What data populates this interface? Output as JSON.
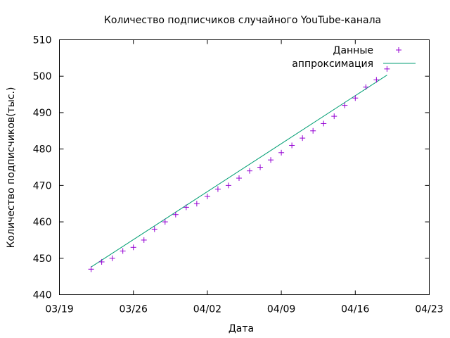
{
  "chart_data": {
    "type": "scatter",
    "title": "Количество подписчиков случайного YouTube-канала",
    "xlabel": "Дата",
    "ylabel": "Количество подписчиков(тыс.)",
    "xlim": [
      "2021-03-19",
      "2021-04-23"
    ],
    "ylim": [
      440,
      510
    ],
    "x_ticks": [
      {
        "date": "2021-03-19",
        "label": "03/19"
      },
      {
        "date": "2021-03-26",
        "label": "03/26"
      },
      {
        "date": "2021-04-02",
        "label": "04/02"
      },
      {
        "date": "2021-04-09",
        "label": "04/09"
      },
      {
        "date": "2021-04-16",
        "label": "04/16"
      },
      {
        "date": "2021-04-23",
        "label": "04/23"
      }
    ],
    "y_ticks": [
      440,
      450,
      460,
      470,
      480,
      490,
      500,
      510
    ],
    "grid": false,
    "legend_position": "top-right",
    "series": [
      {
        "name": "Данные",
        "kind": "points",
        "marker": "plus",
        "color": "#9400d3",
        "points": [
          {
            "x": "2021-03-22",
            "y": 447
          },
          {
            "x": "2021-03-23",
            "y": 449
          },
          {
            "x": "2021-03-24",
            "y": 450
          },
          {
            "x": "2021-03-25",
            "y": 452
          },
          {
            "x": "2021-03-26",
            "y": 453
          },
          {
            "x": "2021-03-27",
            "y": 455
          },
          {
            "x": "2021-03-28",
            "y": 458
          },
          {
            "x": "2021-03-29",
            "y": 460
          },
          {
            "x": "2021-03-30",
            "y": 462
          },
          {
            "x": "2021-03-31",
            "y": 464
          },
          {
            "x": "2021-04-01",
            "y": 465
          },
          {
            "x": "2021-04-02",
            "y": 467
          },
          {
            "x": "2021-04-03",
            "y": 469
          },
          {
            "x": "2021-04-04",
            "y": 470
          },
          {
            "x": "2021-04-05",
            "y": 472
          },
          {
            "x": "2021-04-06",
            "y": 474
          },
          {
            "x": "2021-04-07",
            "y": 475
          },
          {
            "x": "2021-04-08",
            "y": 477
          },
          {
            "x": "2021-04-09",
            "y": 479
          },
          {
            "x": "2021-04-10",
            "y": 481
          },
          {
            "x": "2021-04-11",
            "y": 483
          },
          {
            "x": "2021-04-12",
            "y": 485
          },
          {
            "x": "2021-04-13",
            "y": 487
          },
          {
            "x": "2021-04-14",
            "y": 489
          },
          {
            "x": "2021-04-15",
            "y": 492
          },
          {
            "x": "2021-04-16",
            "y": 494
          },
          {
            "x": "2021-04-17",
            "y": 497
          },
          {
            "x": "2021-04-18",
            "y": 499
          },
          {
            "x": "2021-04-19",
            "y": 502
          }
        ]
      },
      {
        "name": "аппроксимация",
        "kind": "line",
        "color": "#009e73",
        "points": [
          {
            "x": "2021-03-22",
            "y": 447.6
          },
          {
            "x": "2021-04-19",
            "y": 500.3
          }
        ]
      }
    ]
  }
}
